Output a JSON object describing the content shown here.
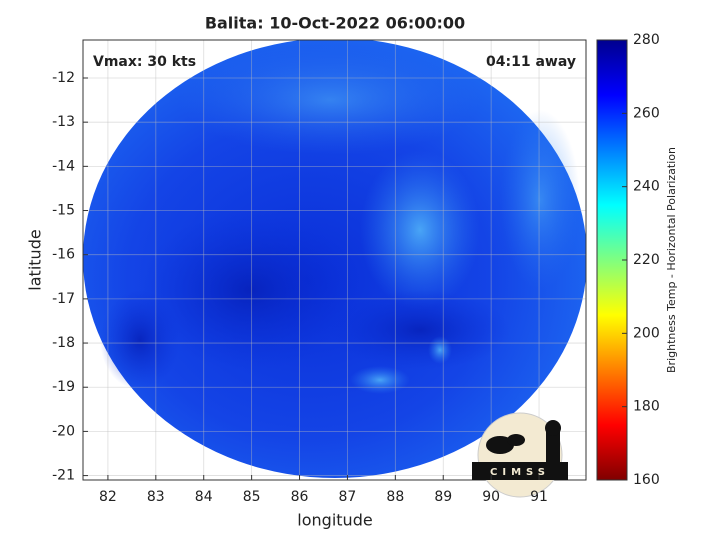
{
  "chart_data": {
    "type": "image",
    "title": "Balita: 10-Oct-2022 06:00:00",
    "annotations": [
      "Vmax: 30 kts",
      "04:11 away"
    ],
    "xlabel": "longitude",
    "ylabel": "latitude",
    "xlim": [
      81.48,
      91.98
    ],
    "xticks": [
      82,
      83,
      84,
      85,
      86,
      87,
      88,
      89,
      90,
      91
    ],
    "ylim": [
      -21.1,
      -11.14
    ],
    "yticks": [
      -12,
      -13,
      -14,
      -15,
      -16,
      -17,
      -18,
      -19,
      -20,
      -21
    ],
    "grid": true,
    "colorbar": {
      "label": "Brightness Temp - Horizontal Polarization",
      "lim": [
        160,
        280
      ],
      "ticks": [
        160,
        180,
        200,
        220,
        240,
        260,
        280
      ],
      "colormap": "jet_r"
    },
    "logo": "CIMSS"
  }
}
